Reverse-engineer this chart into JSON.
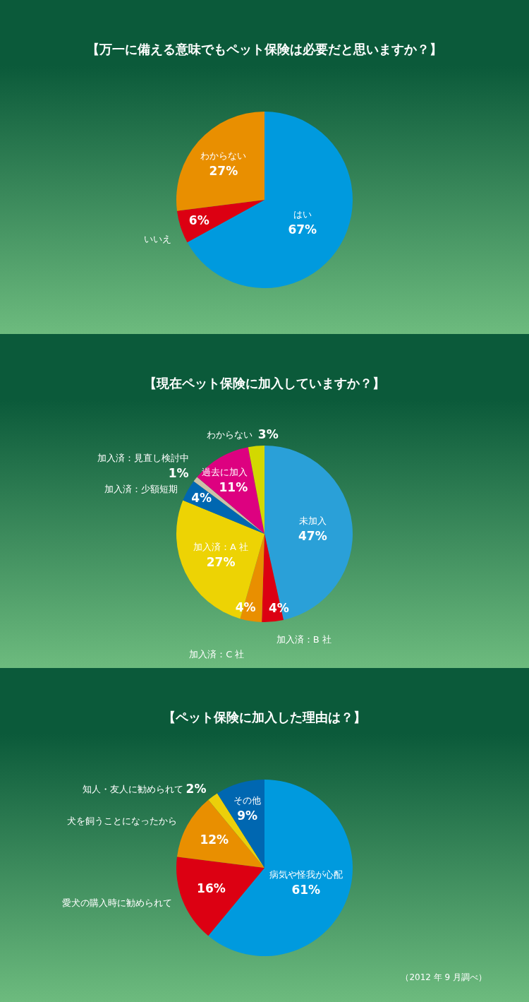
{
  "chart_data": [
    {
      "type": "pie",
      "title": "【万一に備える意味でもペット保険は必要だと思いますか？】",
      "categories": [
        "はい",
        "いいえ",
        "わからない"
      ],
      "values": [
        67,
        6,
        27
      ],
      "colors": [
        "#009ade",
        "#dc0012",
        "#e98f00"
      ],
      "value_labels": [
        "67%",
        "6%",
        "27%"
      ]
    },
    {
      "type": "pie",
      "title": "【現在ペット保険に加入していますか？】",
      "categories": [
        "未加入",
        "加入済：B 社",
        "加入済：C 社",
        "加入済：A 社",
        "加入済：少額短期",
        "加入済：見直し検討中",
        "過去に加入",
        "わからない"
      ],
      "values": [
        47,
        4,
        4,
        27,
        4,
        1,
        11,
        3
      ],
      "colors": [
        "#2aa0d8",
        "#dc0012",
        "#e98f00",
        "#edd304",
        "#0067b1",
        "#cbc1a8",
        "#dd0180",
        "#d3d800"
      ],
      "value_labels": [
        "47%",
        "4%",
        "4%",
        "27%",
        "4%",
        "1%",
        "11%",
        "3%"
      ]
    },
    {
      "type": "pie",
      "title": "【ペット保険に加入した理由は？】",
      "categories": [
        "病気や怪我が心配",
        "愛犬の購入時に勧められて",
        "犬を飼うことになったから",
        "知人・友人に勧められて",
        "その他"
      ],
      "values": [
        61,
        16,
        12,
        2,
        9
      ],
      "colors": [
        "#009ade",
        "#dc0012",
        "#e98f00",
        "#eccf0a",
        "#0067b1"
      ],
      "value_labels": [
        "61%",
        "16%",
        "12%",
        "2%",
        "9%"
      ],
      "annotations": [
        "（2012 年 9 月調べ）"
      ]
    }
  ]
}
